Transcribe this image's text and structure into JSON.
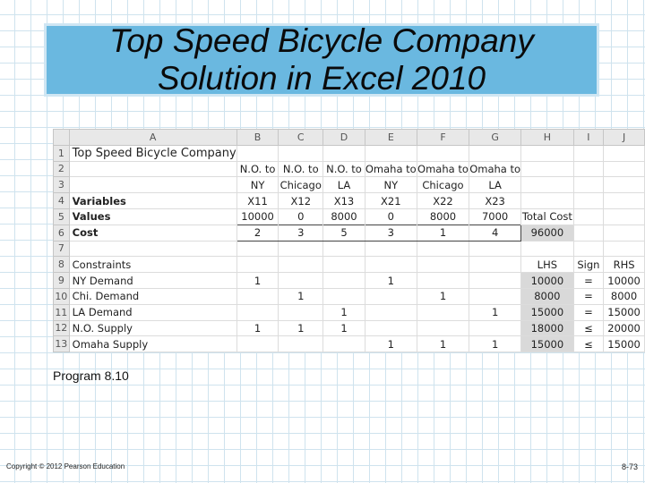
{
  "slide": {
    "title_line1": "Top Speed Bicycle Company",
    "title_line2": "Solution in Excel 2010",
    "caption": "Program 8.10",
    "copyright": "Copyright © 2012 Pearson Education",
    "page_number": "8-73"
  },
  "colors": {
    "title_bg": "#6ab8e0",
    "selected_cell": "#d9d9d9",
    "background_grid": "#cfe3ee"
  },
  "sheet": {
    "columns": [
      "A",
      "B",
      "C",
      "D",
      "E",
      "F",
      "G",
      "H",
      "I",
      "J"
    ],
    "rows": [
      {
        "n": "1",
        "cells": [
          "Top Speed Bicycle Company",
          "",
          "",
          "",
          "",
          "",
          "",
          "",
          "",
          ""
        ]
      },
      {
        "n": "2",
        "cells": [
          "",
          "N.O. to",
          "N.O. to",
          "N.O. to",
          "Omaha to",
          "Omaha to",
          "Omaha to",
          "",
          "",
          ""
        ]
      },
      {
        "n": "3",
        "cells": [
          "",
          "NY",
          "Chicago",
          "LA",
          "NY",
          "Chicago",
          "LA",
          "",
          "",
          ""
        ]
      },
      {
        "n": "4",
        "cells": [
          "Variables",
          "X11",
          "X12",
          "X13",
          "X21",
          "X22",
          "X23",
          "",
          "",
          ""
        ]
      },
      {
        "n": "5",
        "cells": [
          "Values",
          "10000",
          "0",
          "8000",
          "0",
          "8000",
          "7000",
          "Total Cost",
          "",
          ""
        ]
      },
      {
        "n": "6",
        "cells": [
          "Cost",
          "2",
          "3",
          "5",
          "3",
          "1",
          "4",
          "96000",
          "",
          ""
        ]
      },
      {
        "n": "7",
        "cells": [
          "",
          "",
          "",
          "",
          "",
          "",
          "",
          "",
          "",
          ""
        ]
      },
      {
        "n": "8",
        "cells": [
          "Constraints",
          "",
          "",
          "",
          "",
          "",
          "",
          "LHS",
          "Sign",
          "RHS"
        ]
      },
      {
        "n": "9",
        "cells": [
          "NY Demand",
          "1",
          "",
          "",
          "1",
          "",
          "",
          "10000",
          "=",
          "10000"
        ]
      },
      {
        "n": "10",
        "cells": [
          "Chi. Demand",
          "",
          "1",
          "",
          "",
          "1",
          "",
          "8000",
          "=",
          "8000"
        ]
      },
      {
        "n": "11",
        "cells": [
          "LA Demand",
          "",
          "",
          "1",
          "",
          "",
          "1",
          "15000",
          "=",
          "15000"
        ]
      },
      {
        "n": "12",
        "cells": [
          "N.O. Supply",
          "1",
          "1",
          "1",
          "",
          "",
          "",
          "18000",
          "≤",
          "20000"
        ]
      },
      {
        "n": "13",
        "cells": [
          "Omaha Supply",
          "",
          "",
          "",
          "1",
          "1",
          "1",
          "15000",
          "≤",
          "15000"
        ]
      }
    ]
  }
}
